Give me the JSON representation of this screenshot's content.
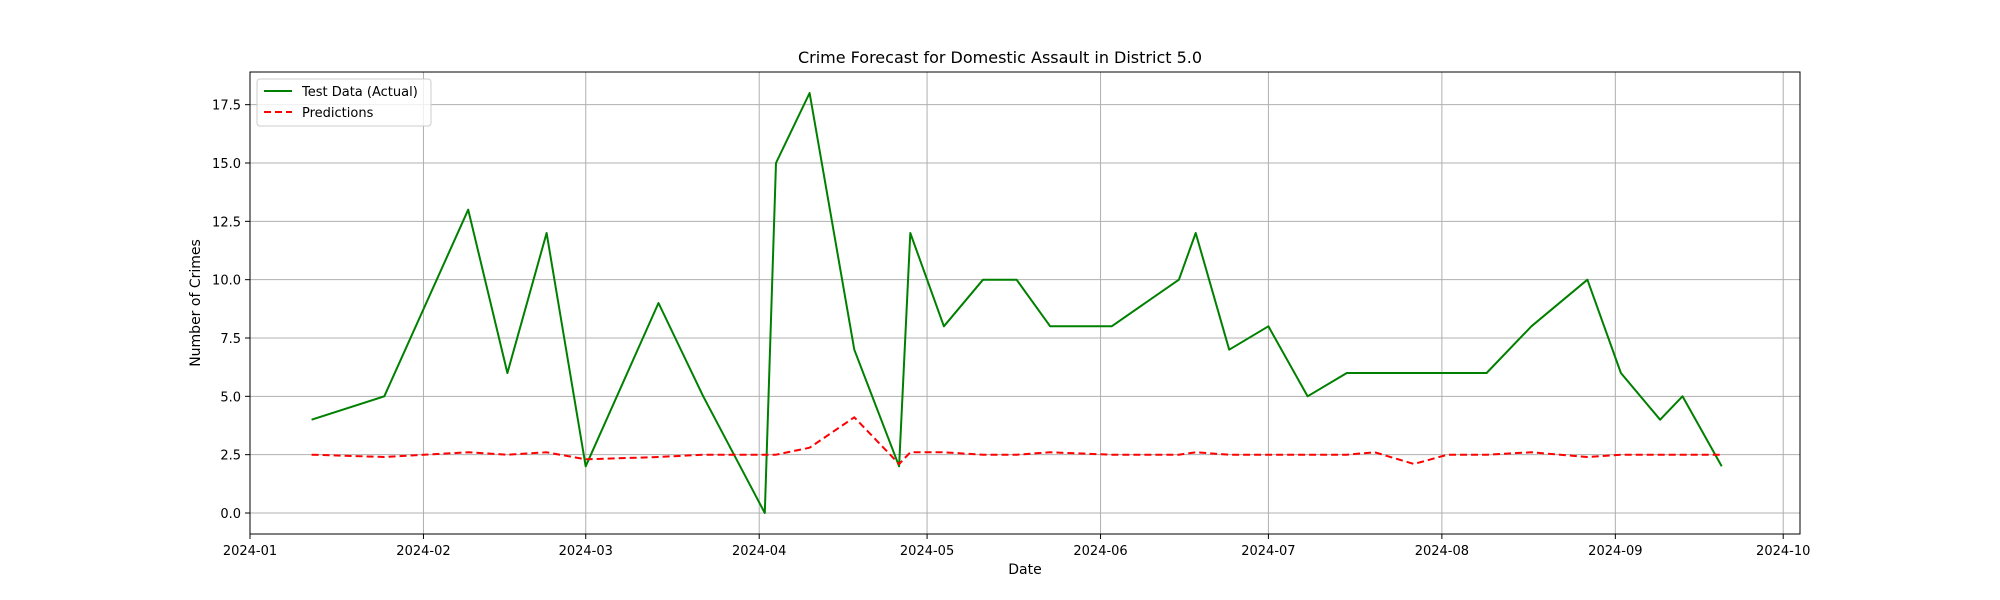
{
  "chart_data": {
    "type": "line",
    "title": "Crime Forecast for Domestic Assault in District 5.0",
    "xlabel": "Date",
    "ylabel": "Number of Crimes",
    "xlim": [
      "2024-01-01",
      "2024-10-04"
    ],
    "ylim": [
      -0.9,
      18.9
    ],
    "x_ticks": [
      "2024-01-01",
      "2024-02-01",
      "2024-03-01",
      "2024-04-01",
      "2024-05-01",
      "2024-06-01",
      "2024-07-01",
      "2024-08-01",
      "2024-09-01",
      "2024-10-01"
    ],
    "x_tick_labels": [
      "2024-01",
      "2024-02",
      "2024-03",
      "2024-04",
      "2024-05",
      "2024-06",
      "2024-07",
      "2024-08",
      "2024-09",
      "2024-10"
    ],
    "y_ticks": [
      0.0,
      2.5,
      5.0,
      7.5,
      10.0,
      12.5,
      15.0,
      17.5
    ],
    "y_tick_labels": [
      "0.0",
      "2.5",
      "5.0",
      "7.5",
      "10.0",
      "12.5",
      "15.0",
      "17.5"
    ],
    "grid": true,
    "legend_position": "top-left",
    "x": [
      "2024-01-12",
      "2024-01-25",
      "2024-02-09",
      "2024-02-16",
      "2024-02-23",
      "2024-03-01",
      "2024-03-14",
      "2024-03-22",
      "2024-04-02",
      "2024-04-04",
      "2024-04-10",
      "2024-04-18",
      "2024-04-26",
      "2024-04-28",
      "2024-05-04",
      "2024-05-11",
      "2024-05-17",
      "2024-05-23",
      "2024-06-03",
      "2024-06-15",
      "2024-06-18",
      "2024-06-24",
      "2024-07-01",
      "2024-07-08",
      "2024-07-15",
      "2024-07-20",
      "2024-07-27",
      "2024-08-02",
      "2024-08-09",
      "2024-08-17",
      "2024-08-27",
      "2024-09-02",
      "2024-09-09",
      "2024-09-13",
      "2024-09-20"
    ],
    "series": [
      {
        "name": "Test Data (Actual)",
        "color": "#008000",
        "style": "solid",
        "values": [
          4,
          5,
          13,
          6,
          12,
          2,
          9,
          5,
          0,
          15,
          18,
          7,
          2,
          12,
          8,
          10,
          10,
          8,
          8,
          10,
          12,
          7,
          8,
          5,
          6,
          6,
          6,
          6,
          6,
          8,
          10,
          6,
          4,
          5,
          2
        ]
      },
      {
        "name": "Predictions",
        "color": "#ff0000",
        "style": "dashed",
        "values": [
          2.5,
          2.4,
          2.6,
          2.5,
          2.6,
          2.3,
          2.4,
          2.5,
          2.5,
          2.5,
          2.8,
          4.1,
          2.1,
          2.6,
          2.6,
          2.5,
          2.5,
          2.6,
          2.5,
          2.5,
          2.6,
          2.5,
          2.5,
          2.5,
          2.5,
          2.6,
          2.1,
          2.5,
          2.5,
          2.6,
          2.4,
          2.5,
          2.5,
          2.5,
          2.5
        ]
      }
    ]
  }
}
